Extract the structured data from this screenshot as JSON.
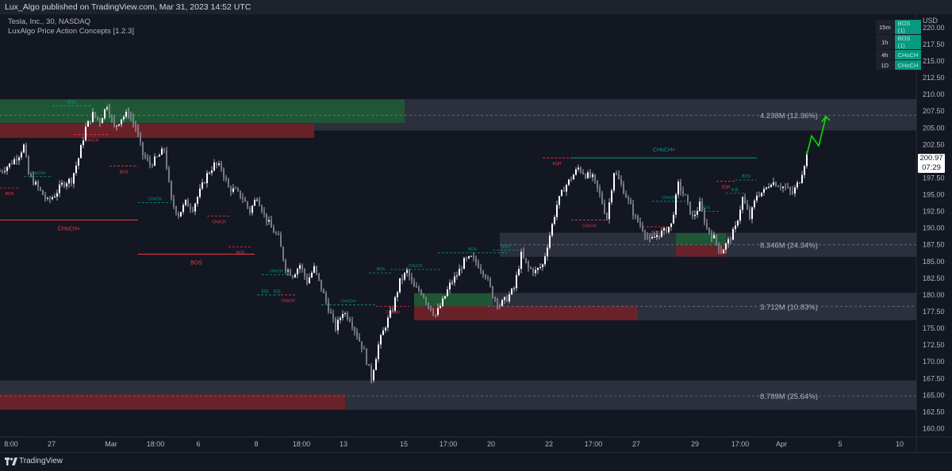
{
  "header": {
    "published": "Lux_Algo published on TradingView.com, Mar 31, 2023 14:52 UTC"
  },
  "legend": {
    "symbol": "Tesla, Inc., 30, NASDAQ",
    "indicator": "LuxAlgo Price Action Concepts [1.2.3]"
  },
  "mtf_table": [
    {
      "tf": "15m",
      "status": "BOS (1)"
    },
    {
      "tf": "1h",
      "status": "BOS (1)"
    },
    {
      "tf": "4h",
      "status": "CHoCH"
    },
    {
      "tf": "1D",
      "status": "CHoCH"
    }
  ],
  "price_tag": {
    "price": "200.97",
    "countdown": "07:29"
  },
  "footer": {
    "brand": "TradingView"
  },
  "colors": {
    "bg": "#131722",
    "bull": "#089981",
    "bear": "#f23645",
    "candle": "#ffffff",
    "arrow": "#00e600"
  },
  "chart_data": {
    "type": "candlestick",
    "currency": "USD",
    "ylim": [
      158.75,
      222.0
    ],
    "y_ticks": [
      "220.00",
      "217.50",
      "215.00",
      "212.50",
      "210.00",
      "207.50",
      "205.00",
      "202.50",
      "200.00",
      "197.50",
      "195.00",
      "192.50",
      "190.00",
      "187.50",
      "185.00",
      "182.50",
      "180.00",
      "177.50",
      "175.00",
      "172.50",
      "170.00",
      "167.50",
      "165.00",
      "162.50",
      "160.00"
    ],
    "x_ticks": [
      "8:00",
      "27",
      "Mar",
      "18:00",
      "6",
      "8",
      "18:00",
      "13",
      "15",
      "17:00",
      "20",
      "22",
      "17:00",
      "27",
      "29",
      "17:00",
      "Apr",
      "5",
      "10"
    ],
    "last_price": 200.97,
    "close_path": [
      [
        0,
        198.5
      ],
      [
        4,
        199.5
      ],
      [
        8,
        201.0
      ],
      [
        10,
        202.3
      ],
      [
        12,
        198.0
      ],
      [
        14,
        197.0
      ],
      [
        17,
        195.5
      ],
      [
        20,
        194.0
      ],
      [
        23,
        195.0
      ],
      [
        26,
        196.5
      ],
      [
        28,
        197.0
      ],
      [
        30,
        197.2
      ],
      [
        33,
        200.5
      ],
      [
        36,
        205.0
      ],
      [
        39,
        207.0
      ],
      [
        42,
        206.0
      ],
      [
        45,
        208.5
      ],
      [
        48,
        205.0
      ],
      [
        51,
        206.5
      ],
      [
        54,
        207.2
      ],
      [
        57,
        205.0
      ],
      [
        60,
        201.0
      ],
      [
        63,
        199.5
      ],
      [
        66,
        200.5
      ],
      [
        69,
        201.8
      ],
      [
        72,
        194.0
      ],
      [
        75,
        192.0
      ],
      [
        78,
        193.8
      ],
      [
        81,
        193.0
      ],
      [
        84,
        195.5
      ],
      [
        87,
        198.0
      ],
      [
        90,
        199.5
      ],
      [
        93,
        199.0
      ],
      [
        96,
        196.0
      ],
      [
        99,
        195.5
      ],
      [
        102,
        194.5
      ],
      [
        105,
        192.5
      ],
      [
        108,
        194.8
      ],
      [
        111,
        192.0
      ],
      [
        114,
        190.0
      ],
      [
        117,
        188.5
      ],
      [
        120,
        184.0
      ],
      [
        123,
        183.0
      ],
      [
        126,
        184.5
      ],
      [
        129,
        182.0
      ],
      [
        132,
        184.0
      ],
      [
        135,
        181.0
      ],
      [
        138,
        178.0
      ],
      [
        141,
        175.0
      ],
      [
        144,
        177.5
      ],
      [
        147,
        176.5
      ],
      [
        150,
        174.0
      ],
      [
        153,
        171.5
      ],
      [
        156,
        167.5
      ],
      [
        159,
        172.5
      ],
      [
        162,
        175.5
      ],
      [
        165,
        178.0
      ],
      [
        168,
        182.0
      ],
      [
        171,
        183.5
      ],
      [
        174,
        181.0
      ],
      [
        177,
        180.5
      ],
      [
        180,
        178.5
      ],
      [
        183,
        177.0
      ],
      [
        186,
        179.0
      ],
      [
        189,
        181.5
      ],
      [
        192,
        183.0
      ],
      [
        195,
        185.0
      ],
      [
        198,
        185.5
      ],
      [
        201,
        184.5
      ],
      [
        204,
        183.0
      ],
      [
        207,
        180.0
      ],
      [
        210,
        178.5
      ],
      [
        213,
        179.5
      ],
      [
        216,
        181.0
      ],
      [
        219,
        186.0
      ],
      [
        222,
        184.0
      ],
      [
        225,
        183.5
      ],
      [
        228,
        184.5
      ],
      [
        231,
        189.0
      ],
      [
        234,
        193.5
      ],
      [
        237,
        196.0
      ],
      [
        240,
        197.5
      ],
      [
        243,
        199.0
      ],
      [
        246,
        198.0
      ],
      [
        249,
        197.5
      ],
      [
        252,
        195.0
      ],
      [
        255,
        191.5
      ],
      [
        258,
        198.5
      ],
      [
        261,
        196.5
      ],
      [
        264,
        194.0
      ],
      [
        267,
        191.5
      ],
      [
        270,
        190.0
      ],
      [
        273,
        188.0
      ],
      [
        276,
        189.0
      ],
      [
        279,
        189.5
      ],
      [
        282,
        190.5
      ],
      [
        285,
        196.5
      ],
      [
        288,
        194.5
      ],
      [
        291,
        191.5
      ],
      [
        294,
        193.5
      ],
      [
        297,
        190.0
      ],
      [
        300,
        188.5
      ],
      [
        303,
        186.5
      ],
      [
        306,
        188.0
      ],
      [
        309,
        190.0
      ],
      [
        312,
        194.5
      ],
      [
        315,
        191.5
      ],
      [
        318,
        195.0
      ],
      [
        321,
        195.5
      ],
      [
        324,
        197.0
      ],
      [
        327,
        196.5
      ],
      [
        330,
        196.0
      ],
      [
        333,
        195.2
      ],
      [
        336,
        197.2
      ],
      [
        339,
        200.97
      ]
    ],
    "order_blocks": [
      {
        "type": "bullish",
        "x_range": [
          0,
          170
        ],
        "y_range": [
          205.75,
          209.25
        ]
      },
      {
        "type": "bearish",
        "x_range": [
          0,
          132
        ],
        "y_range": [
          203.5,
          205.6
        ]
      },
      {
        "type": "bullish",
        "x_range": [
          174,
          207
        ],
        "y_range": [
          178.25,
          180.25
        ]
      },
      {
        "type": "bearish",
        "x_range": [
          174,
          268
        ],
        "y_range": [
          176.2,
          178.3
        ]
      },
      {
        "type": "bullish",
        "x_range": [
          284,
          305
        ],
        "y_range": [
          187.5,
          189.25
        ]
      },
      {
        "type": "bearish",
        "x_range": [
          284,
          305
        ],
        "y_range": [
          185.75,
          187.5
        ]
      },
      {
        "type": "bearish",
        "x_range": [
          0,
          145
        ],
        "y_range": [
          162.9,
          165.1
        ]
      }
    ],
    "liquidity_zones": [
      {
        "x_range": [
          0,
          385
        ],
        "y_range": [
          204.6,
          209.3
        ],
        "label": "4.238M (12.36%)",
        "level": 206.9
      },
      {
        "x_range": [
          210,
          385
        ],
        "y_range": [
          185.7,
          189.3
        ],
        "label": "8.346M (24.34%)",
        "level": 187.5
      },
      {
        "x_range": [
          205,
          385
        ],
        "y_range": [
          176.2,
          180.3
        ],
        "label": "3.712M (10.83%)",
        "level": 178.3
      },
      {
        "x_range": [
          0,
          385
        ],
        "y_range": [
          162.8,
          167.2
        ],
        "label": "8.789M (25.64%)",
        "level": 164.9
      }
    ],
    "structure": [
      {
        "label": "CHoCH+",
        "type": "bearish",
        "x_range": [
          0,
          58
        ],
        "level": 191.2
      },
      {
        "label": "BOS",
        "type": "bearish",
        "x_range": [
          58,
          107
        ],
        "level": 186.1
      },
      {
        "label": "CHoCH+",
        "type": "bullish",
        "x_range": [
          240,
          318
        ],
        "level": 200.5
      },
      {
        "label": "BOS",
        "type": "bullish",
        "x_range": [
          22,
          38
        ],
        "level": 208.3
      },
      {
        "label": "CHoCH",
        "type": "bearish",
        "x_range": [
          31,
          46
        ],
        "level": 204.0
      },
      {
        "label": "BOS",
        "type": "bearish",
        "x_range": [
          46,
          58
        ],
        "level": 199.3
      },
      {
        "label": "BOS",
        "type": "bearish",
        "x_range": [
          0,
          8
        ],
        "level": 196.0
      },
      {
        "label": "CHoCH+",
        "type": "bullish",
        "x_range": [
          10,
          22
        ],
        "level": 197.7
      },
      {
        "label": "CHoCH",
        "type": "bullish",
        "x_range": [
          58,
          72
        ],
        "level": 193.8
      },
      {
        "label": "CHoCH",
        "type": "bearish",
        "x_range": [
          87,
          97
        ],
        "level": 191.8
      },
      {
        "label": "BOS",
        "type": "bearish",
        "x_range": [
          96,
          106
        ],
        "level": 187.2
      },
      {
        "label": "CHoCH",
        "type": "bullish",
        "x_range": [
          110,
          122
        ],
        "level": 183.0
      },
      {
        "label": "EQL",
        "type": "bullish",
        "x_range": [
          108,
          115
        ],
        "level": 180.0
      },
      {
        "label": "EQL",
        "type": "bullish",
        "x_range": [
          115,
          118
        ],
        "level": 180.0
      },
      {
        "label": "CHoCH",
        "type": "bearish",
        "x_range": [
          118,
          124
        ],
        "level": 180.0
      },
      {
        "label": "CHoCH+",
        "type": "bullish",
        "x_range": [
          135,
          158
        ],
        "level": 178.5
      },
      {
        "label": "BOS",
        "type": "bullish",
        "x_range": [
          155,
          165
        ],
        "level": 183.3
      },
      {
        "label": "CHoCH",
        "type": "bearish",
        "x_range": [
          158,
          172
        ],
        "level": 178.3
      },
      {
        "label": "CHoCH",
        "type": "bullish",
        "x_range": [
          164,
          185
        ],
        "level": 183.8
      },
      {
        "label": "BOS",
        "type": "bullish",
        "x_range": [
          184,
          213
        ],
        "level": 186.3
      },
      {
        "label": "BOS",
        "type": "bullish",
        "x_range": [
          207,
          218
        ],
        "level": 186.7
      },
      {
        "label": "EQH",
        "type": "bearish",
        "x_range": [
          228,
          240
        ],
        "level": 200.5
      },
      {
        "label": "CHoCH",
        "type": "bearish",
        "x_range": [
          240,
          255
        ],
        "level": 191.2
      },
      {
        "label": "BOS",
        "type": "bearish",
        "x_range": [
          270,
          281
        ],
        "level": 190.2
      },
      {
        "label": "CHoCH",
        "type": "bullish",
        "x_range": [
          274,
          288
        ],
        "level": 194.0
      },
      {
        "label": "BOS",
        "type": "bullish",
        "x_range": [
          291,
          302
        ],
        "level": 192.5
      },
      {
        "label": "EQH",
        "type": "bearish",
        "x_range": [
          301,
          309
        ],
        "level": 197.0
      },
      {
        "label": "BOS",
        "type": "bullish",
        "x_range": [
          309,
          318
        ],
        "level": 197.2
      },
      {
        "label": "EQL",
        "type": "bullish",
        "x_range": [
          305,
          313
        ],
        "level": 195.2
      }
    ],
    "projection": [
      [
        339,
        200.97
      ],
      [
        341,
        203.8
      ],
      [
        344,
        202.3
      ],
      [
        347,
        206.6
      ]
    ]
  }
}
